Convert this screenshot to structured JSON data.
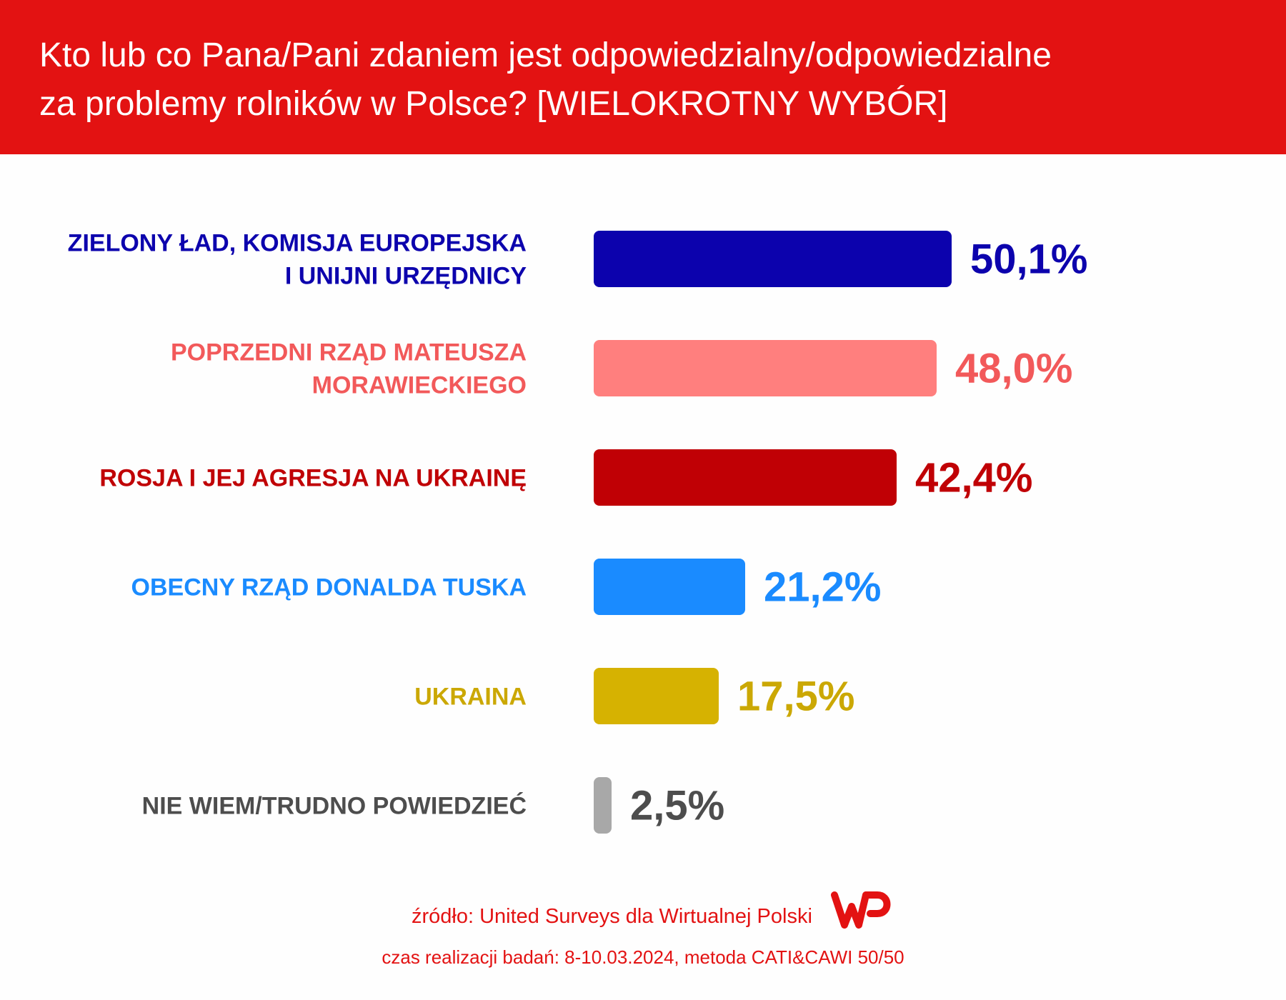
{
  "header": {
    "title_line1": "Kto lub co Pana/Pani zdaniem jest odpowiedzialny/odpowiedzialne",
    "title_line2": "za problemy rolników w Polsce? [WIELOKROTNY WYBÓR]",
    "background": "#e31212"
  },
  "chart_data": {
    "type": "bar",
    "orientation": "horizontal",
    "title": "Kto lub co Pana/Pani zdaniem jest odpowiedzialny/odpowiedzialne za problemy rolników w Polsce? [WIELOKROTNY WYBÓR]",
    "xlabel": "",
    "ylabel": "",
    "unit": "%",
    "grid": false,
    "legend": "none",
    "categories": [
      [
        "ZIELONY ŁAD, KOMISJA EUROPEJSKA",
        "I UNIJNI URZĘDNICY"
      ],
      [
        "POPRZEDNI RZĄD MATEUSZA",
        "MORAWIECKIEGO"
      ],
      [
        "ROSJA I JEJ AGRESJA NA UKRAINĘ"
      ],
      [
        "OBECNY RZĄD DONALDA TUSKA"
      ],
      [
        "UKRAINA"
      ],
      [
        "NIE WIEM/TRUDNO POWIEDZIEĆ"
      ]
    ],
    "values": [
      50.1,
      48.0,
      42.4,
      21.2,
      17.5,
      2.5
    ],
    "value_labels": [
      "50,1%",
      "48,0%",
      "42,4%",
      "21,2%",
      "17,5%",
      "2,5%"
    ],
    "bar_colors": [
      "#0c02ad",
      "#ff7f7e",
      "#c00005",
      "#1a8bff",
      "#d6b201",
      "#a8a8a8"
    ],
    "label_colors": [
      "#0c02ad",
      "#f2595a",
      "#c00005",
      "#1a8bff",
      "#cba804",
      "#4d4d4d"
    ]
  },
  "footer": {
    "source": "źródło: United Surveys dla Wirtualnej Polski",
    "period": "czas realizacji badań: 8-10.03.2024, metoda CATI&CAWI 50/50",
    "logo_text": "WP",
    "logo_color": "#e31212"
  }
}
